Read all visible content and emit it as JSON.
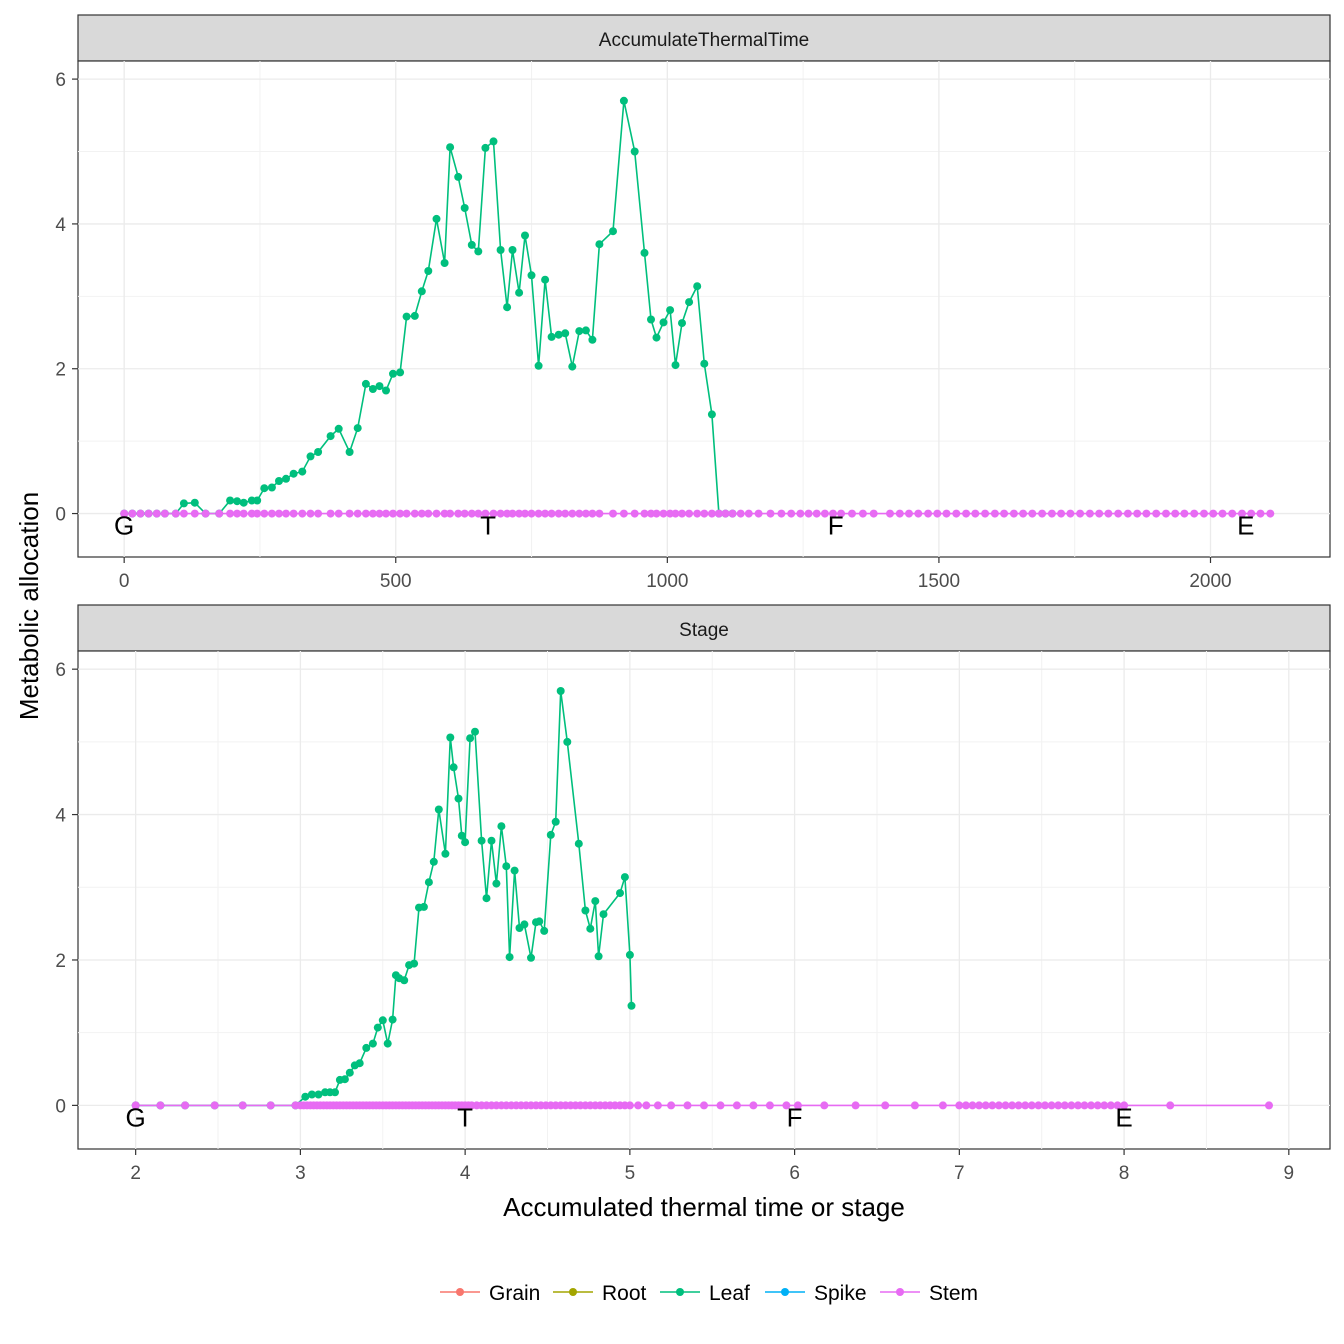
{
  "chart_data": {
    "type": "line",
    "ylabel": "Metabolic allocation",
    "xlabel": "Accumulated thermal time or stage",
    "legend": {
      "position": "bottom",
      "entries": [
        {
          "name": "Grain",
          "color": "#F8766D"
        },
        {
          "name": "Root",
          "color": "#A3A500"
        },
        {
          "name": "Leaf",
          "color": "#00BF7D"
        },
        {
          "name": "Spike",
          "color": "#00B0F6"
        },
        {
          "name": "Stem",
          "color": "#E76BF3"
        }
      ]
    },
    "grid": true,
    "panels": [
      {
        "strip": "AccumulateThermalTime",
        "xlim": [
          -85,
          2220
        ],
        "ylim": [
          -0.6,
          6.25
        ],
        "xticks": [
          0,
          500,
          1000,
          1500,
          2000
        ],
        "xtick_labels": [
          "0",
          "500",
          "1000",
          "1500",
          "2000"
        ],
        "yticks": [
          0,
          2,
          4,
          6
        ],
        "ytick_labels": [
          "0",
          "2",
          "4",
          "6"
        ],
        "stage_labels": [
          {
            "text": "G",
            "x": 0
          },
          {
            "text": "T",
            "x": 670
          },
          {
            "text": "F",
            "x": 1310
          },
          {
            "text": "E",
            "x": 2065
          }
        ],
        "series": [
          {
            "name": "Leaf",
            "x": [
              0,
              15,
              30,
              45,
              60,
              75,
              95,
              110,
              130,
              150,
              175,
              195,
              208,
              220,
              235,
              245,
              258,
              272,
              285,
              298,
              312,
              328,
              343,
              357,
              380,
              395,
              415,
              430,
              445,
              458,
              470,
              482,
              495,
              508,
              520,
              535,
              548,
              560,
              575,
              590,
              600,
              615,
              627,
              640,
              652,
              665,
              680,
              693,
              705,
              715,
              727,
              738,
              750,
              763,
              775,
              787,
              800,
              812,
              825,
              838,
              850,
              862,
              875,
              900,
              920,
              940,
              958,
              970,
              980,
              993,
              1005,
              1015,
              1027,
              1040,
              1055,
              1068,
              1082,
              1095,
              1107,
              1120
            ],
            "y": [
              0,
              0,
              0,
              0,
              0,
              0,
              0,
              0.14,
              0.15,
              0,
              0,
              0.18,
              0.17,
              0.15,
              0.18,
              0.18,
              0.35,
              0.36,
              0.45,
              0.48,
              0.55,
              0.58,
              0.79,
              0.85,
              1.07,
              1.17,
              0.85,
              1.18,
              1.79,
              1.72,
              1.76,
              1.7,
              1.93,
              1.95,
              2.72,
              2.73,
              3.07,
              3.35,
              4.07,
              3.46,
              5.06,
              4.65,
              4.22,
              3.71,
              3.62,
              5.05,
              5.14,
              3.64,
              2.85,
              3.64,
              3.05,
              3.84,
              3.29,
              2.04,
              3.23,
              2.44,
              2.47,
              2.49,
              2.03,
              2.52,
              2.53,
              2.4,
              3.72,
              3.9,
              5.7,
              5.0,
              3.6,
              2.68,
              2.43,
              2.64,
              2.81,
              2.05,
              2.63,
              2.92,
              3.14,
              2.07,
              1.37,
              0,
              0,
              0
            ]
          },
          {
            "name": "Stem",
            "x": [
              0,
              15,
              30,
              45,
              60,
              75,
              95,
              110,
              130,
              150,
              175,
              195,
              208,
              220,
              235,
              245,
              258,
              272,
              285,
              298,
              312,
              328,
              343,
              357,
              380,
              395,
              415,
              430,
              445,
              458,
              470,
              482,
              495,
              508,
              520,
              535,
              548,
              560,
              575,
              590,
              600,
              615,
              627,
              640,
              652,
              665,
              680,
              693,
              705,
              715,
              727,
              738,
              750,
              763,
              775,
              787,
              800,
              812,
              825,
              838,
              850,
              862,
              875,
              900,
              920,
              940,
              958,
              970,
              980,
              993,
              1005,
              1015,
              1027,
              1040,
              1055,
              1068,
              1082,
              1095,
              1107,
              1120,
              1135,
              1150,
              1168,
              1190,
              1210,
              1228,
              1245,
              1260,
              1275,
              1290,
              1305,
              1320,
              1340,
              1360,
              1380,
              1410,
              1428,
              1445,
              1462,
              1480,
              1497,
              1514,
              1532,
              1550,
              1567,
              1585,
              1603,
              1620,
              1638,
              1655,
              1672,
              1690,
              1708,
              1725,
              1742,
              1760,
              1778,
              1795,
              1812,
              1830,
              1848,
              1865,
              1882,
              1900,
              1918,
              1935,
              1952,
              1970,
              1988,
              2005,
              2022,
              2040,
              2058,
              2075,
              2092,
              2110
            ],
            "y": [
              0,
              0,
              0,
              0,
              0,
              0,
              0,
              0,
              0,
              0,
              0,
              0,
              0,
              0,
              0,
              0,
              0,
              0,
              0,
              0,
              0,
              0,
              0,
              0,
              0,
              0,
              0,
              0,
              0,
              0,
              0,
              0,
              0,
              0,
              0,
              0,
              0,
              0,
              0,
              0,
              0,
              0,
              0,
              0,
              0,
              0,
              0,
              0,
              0,
              0,
              0,
              0,
              0,
              0,
              0,
              0,
              0,
              0,
              0,
              0,
              0,
              0,
              0,
              0,
              0,
              0,
              0,
              0,
              0,
              0,
              0,
              0,
              0,
              0,
              0,
              0,
              0,
              0,
              0,
              0,
              0,
              0,
              0,
              0,
              0,
              0,
              0,
              0,
              0,
              0,
              0,
              0,
              0,
              0,
              0,
              0,
              0,
              0,
              0,
              0,
              0,
              0,
              0,
              0,
              0,
              0,
              0,
              0,
              0,
              0,
              0,
              0,
              0,
              0,
              0,
              0,
              0,
              0,
              0,
              0,
              0,
              0,
              0,
              0,
              0,
              0,
              0,
              0,
              0,
              0,
              0,
              0,
              0,
              0,
              0,
              0
            ]
          }
        ]
      },
      {
        "strip": "Stage",
        "xlim": [
          1.65,
          9.25
        ],
        "ylim": [
          -0.6,
          6.25
        ],
        "xticks": [
          2,
          3,
          4,
          5,
          6,
          7,
          8,
          9
        ],
        "xtick_labels": [
          "2",
          "3",
          "4",
          "5",
          "6",
          "7",
          "8",
          "9"
        ],
        "yticks": [
          0,
          2,
          4,
          6
        ],
        "ytick_labels": [
          "0",
          "2",
          "4",
          "6"
        ],
        "stage_labels": [
          {
            "text": "G",
            "x": 2
          },
          {
            "text": "T",
            "x": 4
          },
          {
            "text": "F",
            "x": 6
          },
          {
            "text": "E",
            "x": 8
          }
        ],
        "series": [
          {
            "name": "Leaf",
            "x": [
              2.0,
              2.15,
              2.3,
              2.48,
              2.65,
              2.82,
              2.97,
              3.03,
              3.07,
              3.11,
              3.15,
              3.18,
              3.21,
              3.24,
              3.27,
              3.3,
              3.33,
              3.36,
              3.4,
              3.44,
              3.47,
              3.5,
              3.53,
              3.56,
              3.58,
              3.6,
              3.63,
              3.66,
              3.69,
              3.72,
              3.75,
              3.78,
              3.81,
              3.84,
              3.88,
              3.91,
              3.93,
              3.96,
              3.98,
              4.0,
              4.03,
              4.06,
              4.1,
              4.13,
              4.16,
              4.19,
              4.22,
              4.25,
              4.27,
              4.3,
              4.33,
              4.36,
              4.4,
              4.43,
              4.45,
              4.48,
              4.52,
              4.55,
              4.58,
              4.62,
              4.69,
              4.73,
              4.76,
              4.79,
              4.81,
              4.84,
              4.94,
              4.97,
              5.0,
              5.01
            ],
            "y": [
              0,
              0,
              0,
              0,
              0,
              0,
              0,
              0.12,
              0.15,
              0.15,
              0.18,
              0.18,
              0.18,
              0.35,
              0.36,
              0.45,
              0.55,
              0.58,
              0.79,
              0.85,
              1.07,
              1.17,
              0.85,
              1.18,
              1.79,
              1.75,
              1.72,
              1.93,
              1.95,
              2.72,
              2.73,
              3.07,
              3.35,
              4.07,
              3.46,
              5.06,
              4.65,
              4.22,
              3.71,
              3.62,
              5.05,
              5.14,
              3.64,
              2.85,
              3.64,
              3.05,
              3.84,
              3.29,
              2.04,
              3.23,
              2.44,
              2.49,
              2.03,
              2.52,
              2.53,
              2.4,
              3.72,
              3.9,
              5.7,
              5.0,
              3.6,
              2.68,
              2.43,
              2.81,
              2.05,
              2.63,
              2.92,
              3.14,
              2.07,
              1.37
            ]
          },
          {
            "name": "Stem",
            "x": [
              2.0,
              2.15,
              2.3,
              2.48,
              2.65,
              2.82,
              2.97,
              3.0,
              3.02,
              3.04,
              3.06,
              3.08,
              3.1,
              3.12,
              3.14,
              3.16,
              3.18,
              3.2,
              3.22,
              3.24,
              3.26,
              3.28,
              3.3,
              3.32,
              3.34,
              3.36,
              3.38,
              3.4,
              3.42,
              3.44,
              3.46,
              3.48,
              3.5,
              3.52,
              3.54,
              3.56,
              3.58,
              3.6,
              3.62,
              3.64,
              3.66,
              3.68,
              3.7,
              3.72,
              3.74,
              3.76,
              3.78,
              3.8,
              3.82,
              3.84,
              3.86,
              3.88,
              3.9,
              3.92,
              3.94,
              3.96,
              3.98,
              4.0,
              4.02,
              4.04,
              4.07,
              4.1,
              4.13,
              4.16,
              4.19,
              4.22,
              4.25,
              4.28,
              4.31,
              4.34,
              4.37,
              4.4,
              4.43,
              4.46,
              4.49,
              4.52,
              4.55,
              4.58,
              4.61,
              4.64,
              4.67,
              4.7,
              4.73,
              4.76,
              4.79,
              4.82,
              4.85,
              4.88,
              4.91,
              4.94,
              4.97,
              5.0,
              5.05,
              5.1,
              5.17,
              5.25,
              5.35,
              5.45,
              5.55,
              5.65,
              5.75,
              5.85,
              5.95,
              6.02,
              6.18,
              6.37,
              6.55,
              6.73,
              6.9,
              7.0,
              7.04,
              7.08,
              7.12,
              7.16,
              7.2,
              7.24,
              7.28,
              7.32,
              7.36,
              7.4,
              7.44,
              7.48,
              7.52,
              7.56,
              7.6,
              7.64,
              7.68,
              7.72,
              7.76,
              7.8,
              7.84,
              7.88,
              7.92,
              7.96,
              8.0,
              8.28,
              8.88
            ],
            "y": [
              0,
              0,
              0,
              0,
              0,
              0,
              0,
              0,
              0,
              0,
              0,
              0,
              0,
              0,
              0,
              0,
              0,
              0,
              0,
              0,
              0,
              0,
              0,
              0,
              0,
              0,
              0,
              0,
              0,
              0,
              0,
              0,
              0,
              0,
              0,
              0,
              0,
              0,
              0,
              0,
              0,
              0,
              0,
              0,
              0,
              0,
              0,
              0,
              0,
              0,
              0,
              0,
              0,
              0,
              0,
              0,
              0,
              0,
              0,
              0,
              0,
              0,
              0,
              0,
              0,
              0,
              0,
              0,
              0,
              0,
              0,
              0,
              0,
              0,
              0,
              0,
              0,
              0,
              0,
              0,
              0,
              0,
              0,
              0,
              0,
              0,
              0,
              0,
              0,
              0,
              0,
              0,
              0,
              0,
              0,
              0,
              0,
              0,
              0,
              0,
              0,
              0,
              0,
              0,
              0,
              0,
              0,
              0,
              0,
              0,
              0,
              0,
              0,
              0,
              0,
              0,
              0,
              0,
              0,
              0,
              0,
              0,
              0,
              0,
              0,
              0,
              0,
              0,
              0,
              0,
              0,
              0,
              0,
              0,
              0,
              0,
              0
            ]
          }
        ]
      }
    ]
  }
}
